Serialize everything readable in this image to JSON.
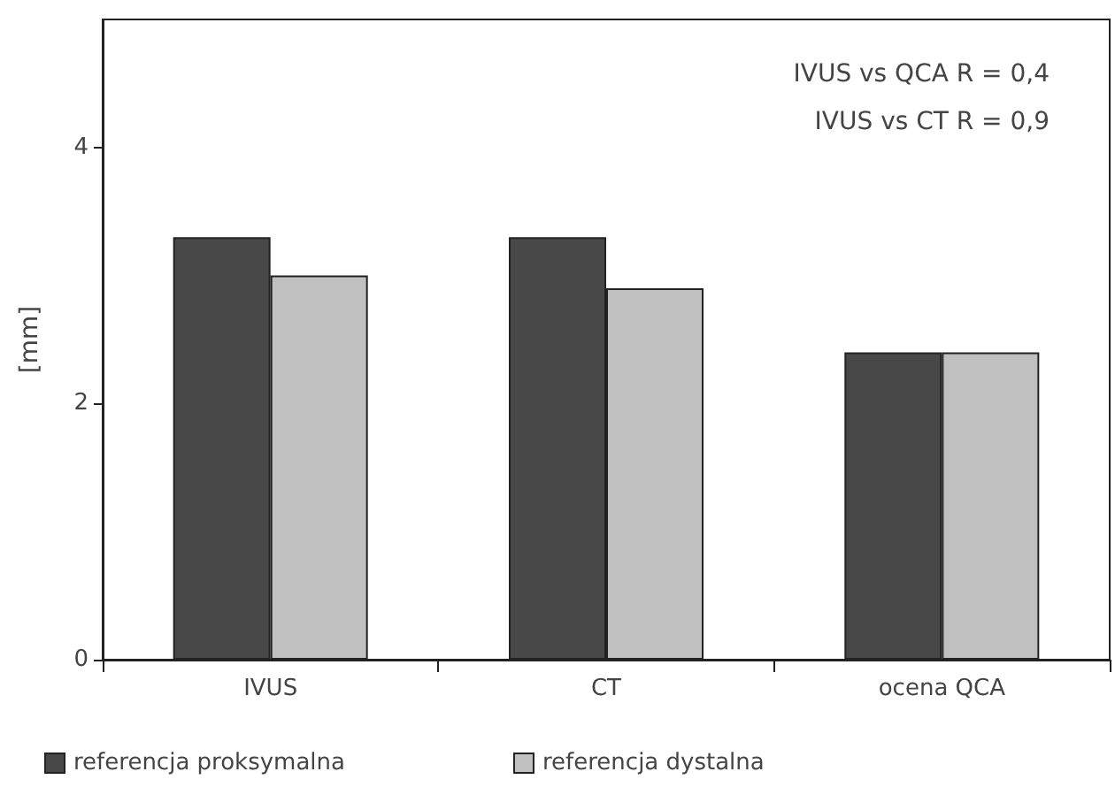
{
  "chart_data": {
    "type": "bar",
    "ylabel": "[mm]",
    "categories": [
      "IVUS",
      "CT",
      "ocena QCA"
    ],
    "series": [
      {
        "name": "referencja proksymalna",
        "color": "#484848",
        "values": [
          3.3,
          3.3,
          2.4
        ]
      },
      {
        "name": "referencja dystalna",
        "color": "#c0c0c0",
        "values": [
          3.0,
          2.9,
          2.4
        ]
      }
    ],
    "ylim": [
      0,
      5
    ],
    "yticks": [
      0,
      2,
      4
    ],
    "grid": false,
    "legend": "bottom left",
    "annotations": [
      "IVUS vs QCA R = 0,4",
      "IVUS vs CT R = 0,9"
    ]
  }
}
